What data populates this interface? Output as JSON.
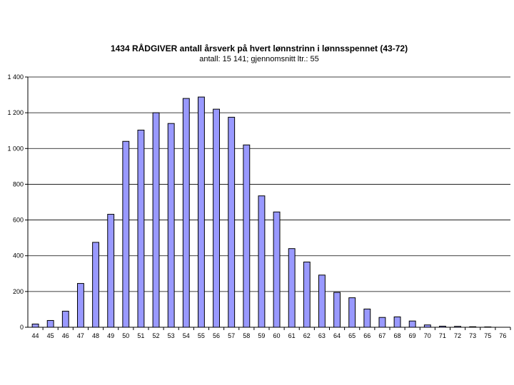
{
  "chart_data": {
    "type": "bar",
    "title": "1434 RÅDGIVER antall årsverk på hvert lønnstrinn i lønnsspennet (43-72)",
    "subtitle": "antall: 15 141; gjennomsnitt ltr.: 55",
    "xlabel": "",
    "ylabel": "",
    "ylim": [
      0,
      1400
    ],
    "yticks": [
      0,
      200,
      400,
      600,
      800,
      1000,
      1200,
      1400
    ],
    "ytick_labels": [
      "0",
      "200",
      "400",
      "600",
      "800",
      "1 000",
      "1 200",
      "1 400"
    ],
    "grid": true,
    "legend": "none",
    "bar_color": "#9999ff",
    "categories": [
      "44",
      "45",
      "46",
      "47",
      "48",
      "49",
      "50",
      "51",
      "52",
      "53",
      "54",
      "55",
      "56",
      "57",
      "58",
      "59",
      "60",
      "61",
      "62",
      "63",
      "64",
      "65",
      "66",
      "67",
      "68",
      "69",
      "70",
      "71",
      "72",
      "73",
      "75",
      "76"
    ],
    "values": [
      18,
      38,
      90,
      245,
      475,
      632,
      1040,
      1103,
      1200,
      1140,
      1280,
      1288,
      1220,
      1175,
      1020,
      735,
      645,
      440,
      365,
      292,
      195,
      165,
      102,
      55,
      58,
      35,
      13,
      6,
      5,
      3,
      2,
      0
    ]
  }
}
